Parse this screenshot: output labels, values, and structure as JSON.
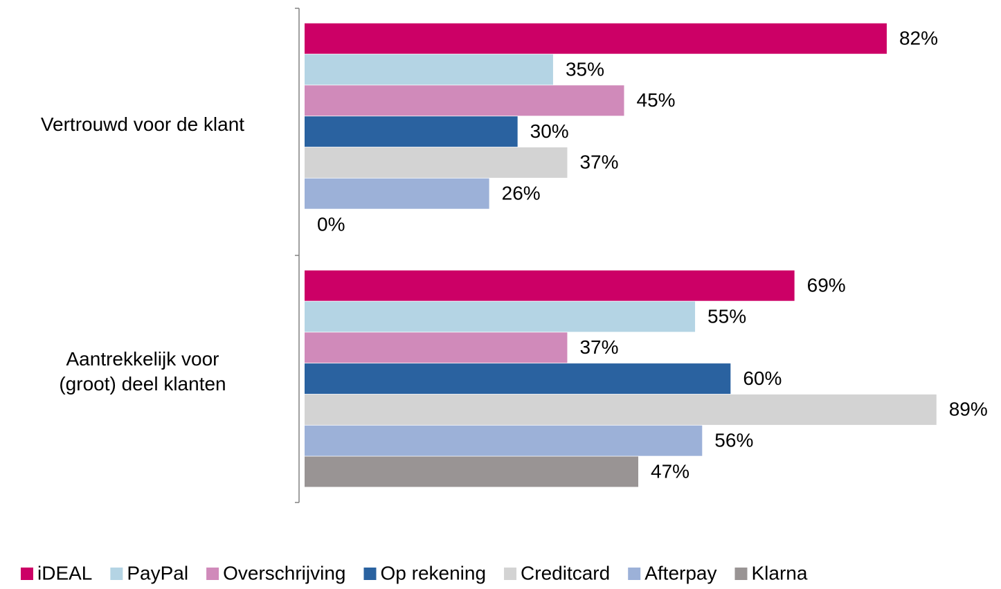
{
  "chart_data": {
    "type": "bar",
    "orientation": "horizontal",
    "categories": [
      "Vertrouwd voor de klant",
      "Aantrekkelijk voor\n(groot) deel klanten"
    ],
    "series": [
      {
        "name": "iDEAL",
        "color": "#cc0066",
        "values": [
          82,
          69
        ],
        "value_labels": [
          "82%",
          "69%"
        ]
      },
      {
        "name": "PayPal",
        "color": "#b4d4e4",
        "values": [
          35,
          55
        ],
        "value_labels": [
          "35%",
          "55%"
        ]
      },
      {
        "name": "Overschrijving",
        "color": "#d08aba",
        "values": [
          45,
          37
        ],
        "value_labels": [
          "45%",
          "37%"
        ]
      },
      {
        "name": "Op rekening",
        "color": "#2a62a0",
        "values": [
          30,
          60
        ],
        "value_labels": [
          "30%",
          "60%"
        ]
      },
      {
        "name": "Creditcard",
        "color": "#d3d3d3",
        "values": [
          37,
          89
        ],
        "value_labels": [
          "37%",
          "89%"
        ]
      },
      {
        "name": "Afterpay",
        "color": "#9cb1d8",
        "values": [
          26,
          56
        ],
        "value_labels": [
          "26%",
          "56%"
        ]
      },
      {
        "name": "Klarna",
        "color": "#999494",
        "values": [
          0,
          47
        ],
        "value_labels": [
          "0%",
          "47%"
        ]
      }
    ],
    "xlim": [
      0,
      90
    ],
    "legend": "bottom"
  }
}
